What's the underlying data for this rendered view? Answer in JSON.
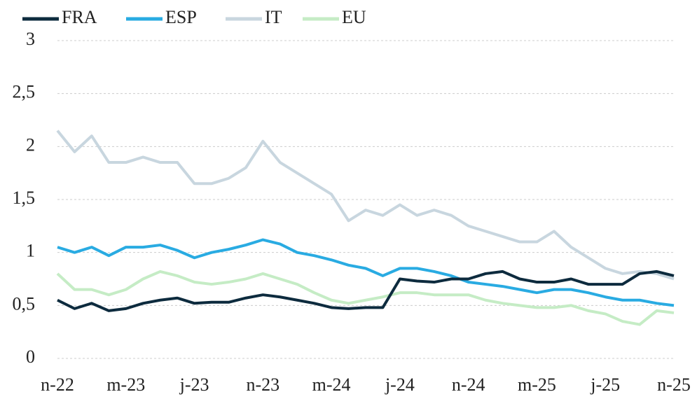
{
  "chart_data": {
    "type": "line",
    "categories": [
      "n-22",
      null,
      null,
      null,
      "m-23",
      null,
      null,
      null,
      "j-23",
      null,
      null,
      null,
      "n-23",
      null,
      null,
      null,
      "m-24",
      null,
      null,
      null,
      "j-24",
      null,
      null,
      null,
      "n-24",
      null,
      null,
      null,
      "m-25",
      null,
      null,
      null,
      "j-25",
      null,
      null,
      null,
      "n-25"
    ],
    "series": [
      {
        "name": "FRA",
        "color": "#0d2b3e",
        "values": [
          0.55,
          0.47,
          0.52,
          0.45,
          0.47,
          0.52,
          0.55,
          0.57,
          0.52,
          0.53,
          0.53,
          0.57,
          0.6,
          0.58,
          0.55,
          0.52,
          0.48,
          0.47,
          0.48,
          0.48,
          0.75,
          0.73,
          0.72,
          0.75,
          0.75,
          0.8,
          0.82,
          0.75,
          0.72,
          0.72,
          0.75,
          0.7,
          0.7,
          0.7,
          0.8,
          0.82,
          0.78
        ]
      },
      {
        "name": "ESP",
        "color": "#29abe2",
        "values": [
          1.05,
          1.0,
          1.05,
          0.97,
          1.05,
          1.05,
          1.07,
          1.02,
          0.95,
          1.0,
          1.03,
          1.07,
          1.12,
          1.08,
          1.0,
          0.97,
          0.93,
          0.88,
          0.85,
          0.78,
          0.85,
          0.85,
          0.82,
          0.78,
          0.72,
          0.7,
          0.68,
          0.65,
          0.62,
          0.65,
          0.65,
          0.62,
          0.58,
          0.55,
          0.55,
          0.52,
          0.5
        ]
      },
      {
        "name": "IT",
        "color": "#c8d6df",
        "values": [
          2.15,
          1.95,
          2.1,
          1.85,
          1.85,
          1.9,
          1.85,
          1.85,
          1.65,
          1.65,
          1.7,
          1.8,
          2.05,
          1.85,
          1.75,
          1.65,
          1.55,
          1.3,
          1.4,
          1.35,
          1.45,
          1.35,
          1.4,
          1.35,
          1.25,
          1.2,
          1.15,
          1.1,
          1.1,
          1.2,
          1.05,
          0.95,
          0.85,
          0.8,
          0.82,
          0.8,
          0.75
        ]
      },
      {
        "name": "EU",
        "color": "#c5ecc5",
        "values": [
          0.8,
          0.65,
          0.65,
          0.6,
          0.65,
          0.75,
          0.82,
          0.78,
          0.72,
          0.7,
          0.72,
          0.75,
          0.8,
          0.75,
          0.7,
          0.62,
          0.55,
          0.52,
          0.55,
          0.58,
          0.62,
          0.62,
          0.6,
          0.6,
          0.6,
          0.55,
          0.52,
          0.5,
          0.48,
          0.48,
          0.5,
          0.45,
          0.42,
          0.35,
          0.32,
          0.45,
          0.43
        ]
      }
    ],
    "ylim": [
      0,
      3
    ],
    "yticks": [
      0,
      {
        "value": 0.5,
        "label": "0,5"
      },
      1,
      {
        "value": 1.5,
        "label": "1,5"
      },
      2,
      {
        "value": 2.5,
        "label": "2,5"
      },
      3
    ],
    "grid": true,
    "legend": "top"
  }
}
